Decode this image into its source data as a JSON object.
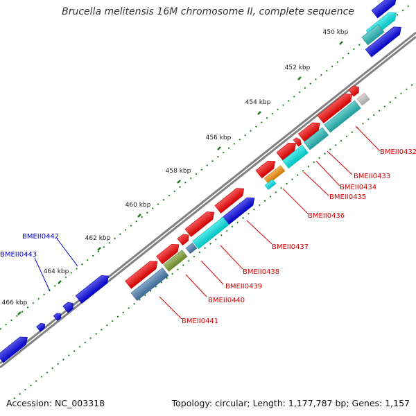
{
  "title": "Brucella melitensis 16M chromosome II, complete sequence",
  "accession": "Accession: NC_003318",
  "topology": "Topology: circular; Length: 1,177,787 bp; Genes: 1,157",
  "ticks": [
    "450 kbp",
    "452 kbp",
    "454 kbp",
    "456 kbp",
    "458 kbp",
    "460 kbp",
    "462 kbp",
    "464 kbp",
    "466 kbp"
  ],
  "gene_labels": [
    {
      "text": "BMEII0432",
      "color": "#d40000"
    },
    {
      "text": "BMEII0433",
      "color": "#d40000"
    },
    {
      "text": "BMEII0434",
      "color": "#d40000"
    },
    {
      "text": "BMEII0435",
      "color": "#d40000"
    },
    {
      "text": "BMEII0436",
      "color": "#d40000"
    },
    {
      "text": "BMEII0437",
      "color": "#d40000"
    },
    {
      "text": "BMEII0438",
      "color": "#d40000"
    },
    {
      "text": "BMEII0439",
      "color": "#d40000"
    },
    {
      "text": "BMEII0440",
      "color": "#d40000"
    },
    {
      "text": "BMEII0441",
      "color": "#d40000"
    },
    {
      "text": "BMEII0442",
      "color": "#0000cc"
    },
    {
      "text": "BMEII0443",
      "color": "#0000cc"
    }
  ],
  "colors": {
    "backbone": "#808080",
    "tick": "#1a7a1a",
    "cds_red": "#ee0000",
    "cds_blue": "#0000dd",
    "cds_cyan": "#00dddd",
    "teal": "#22b2b2",
    "steel": "#4477aa",
    "olive": "#77992a",
    "orange": "#ee8800",
    "grey": "#c0c0c0"
  }
}
